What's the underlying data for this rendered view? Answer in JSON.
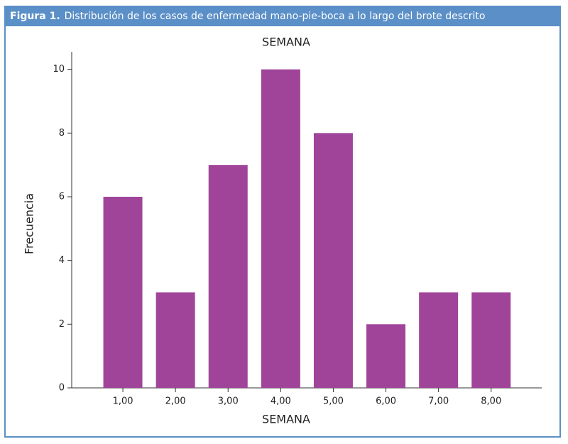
{
  "figure": {
    "label": "Figura 1.",
    "caption": "Distribución de los casos de enfermedad mano-pie-boca a lo largo del brote descrito"
  },
  "chart_data": {
    "type": "bar",
    "title": "SEMANA",
    "xlabel": "SEMANA",
    "ylabel": "Frecuencia",
    "categories": [
      "1,00",
      "2,00",
      "3,00",
      "4,00",
      "5,00",
      "6,00",
      "7,00",
      "8,00"
    ],
    "values": [
      6,
      3,
      7,
      10,
      8,
      2,
      3,
      3
    ],
    "color": "#a0449a",
    "ylim": [
      0,
      10.55
    ],
    "yticks": [
      0,
      2,
      4,
      6,
      8,
      10
    ],
    "grid": false
  }
}
